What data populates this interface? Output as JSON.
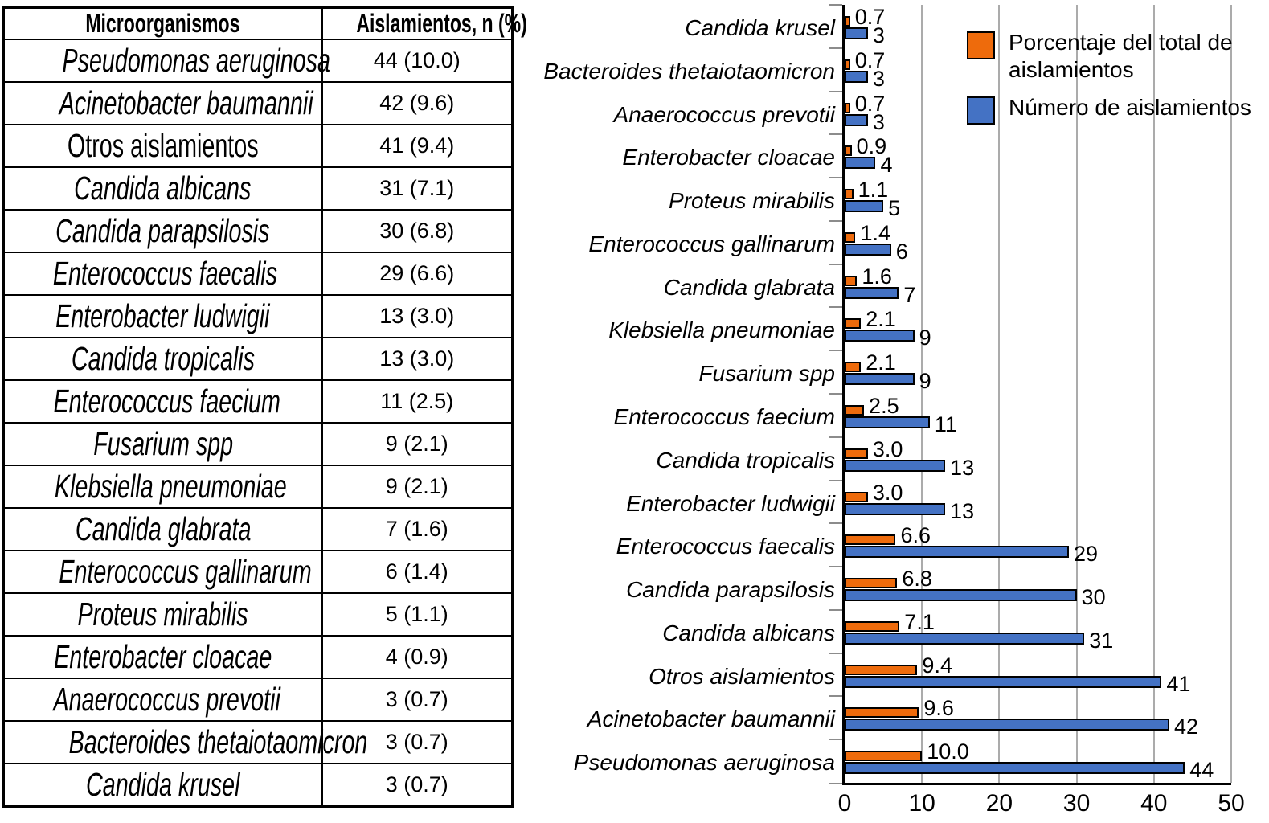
{
  "table": {
    "headers": [
      "Microorganismos",
      "Aislamientos, n (%)"
    ],
    "rows": [
      {
        "name": "Pseudomonas aeruginosa",
        "value": "44 (10.0)",
        "italic": true
      },
      {
        "name": "Acinetobacter baumannii",
        "value": "42 (9.6)",
        "italic": true
      },
      {
        "name": "Otros aislamientos",
        "value": "41 (9.4)",
        "italic": false
      },
      {
        "name": "Candida albicans",
        "value": "31 (7.1)",
        "italic": true
      },
      {
        "name": "Candida parapsilosis",
        "value": "30 (6.8)",
        "italic": true
      },
      {
        "name": "Enterococcus faecalis",
        "value": "29 (6.6)",
        "italic": true
      },
      {
        "name": "Enterobacter ludwigii",
        "value": "13 (3.0)",
        "italic": true
      },
      {
        "name": "Candida tropicalis",
        "value": "13 (3.0)",
        "italic": true
      },
      {
        "name": "Enterococcus faecium",
        "value": "11 (2.5)",
        "italic": true
      },
      {
        "name": "Fusarium spp",
        "value": "9 (2.1)",
        "italic": true
      },
      {
        "name": "Klebsiella pneumoniae",
        "value": "9 (2.1)",
        "italic": true
      },
      {
        "name": "Candida glabrata",
        "value": "7 (1.6)",
        "italic": true
      },
      {
        "name": "Enterococcus gallinarum",
        "value": "6 (1.4)",
        "italic": true
      },
      {
        "name": "Proteus mirabilis",
        "value": "5 (1.1)",
        "italic": true
      },
      {
        "name": "Enterobacter cloacae",
        "value": "4 (0.9)",
        "italic": true
      },
      {
        "name": "Anaerococcus prevotii",
        "value": "3 (0.7)",
        "italic": true
      },
      {
        "name": "Bacteroides thetaiotaomicron",
        "value": "3 (0.7)",
        "italic": true
      },
      {
        "name": "Candida krusel",
        "value": "3 (0.7)",
        "italic": true
      }
    ]
  },
  "chart_data": {
    "type": "bar",
    "orientation": "horizontal",
    "categories": [
      "Candida krusel",
      "Bacteroides thetaiotaomicron",
      "Anaerococcus prevotii",
      "Enterobacter cloacae",
      "Proteus mirabilis",
      "Enterococcus gallinarum",
      "Candida glabrata",
      "Klebsiella pneumoniae",
      "Fusarium spp",
      "Enterococcus faecium",
      "Candida tropicalis",
      "Enterobacter ludwigii",
      "Enterococcus faecalis",
      "Candida parapsilosis",
      "Candida albicans",
      "Otros aislamientos",
      "Acinetobacter baumannii",
      "Pseudomonas aeruginosa"
    ],
    "series": [
      {
        "name": "Porcentaje del total de aislamientos",
        "color": "#EE6B0C",
        "values": [
          0.7,
          0.7,
          0.7,
          0.9,
          1.1,
          1.4,
          1.6,
          2.1,
          2.1,
          2.5,
          3.0,
          3.0,
          6.6,
          6.8,
          7.1,
          9.4,
          9.6,
          10.0
        ],
        "labels": [
          "0.7",
          "0.7",
          "0.7",
          "0.9",
          "1.1",
          "1.4",
          "1.6",
          "2.1",
          "2.1",
          "2.5",
          "3.0",
          "3.0",
          "6.6",
          "6.8",
          "7.1",
          "9.4",
          "9.6",
          "10.0"
        ]
      },
      {
        "name": "Número de aislamientos",
        "color": "#4472C4",
        "values": [
          3,
          3,
          3,
          4,
          5,
          6,
          7,
          9,
          9,
          11,
          13,
          13,
          29,
          30,
          31,
          41,
          42,
          44
        ],
        "labels": [
          "3",
          "3",
          "3",
          "4",
          "5",
          "6",
          "7",
          "9",
          "9",
          "11",
          "13",
          "13",
          "29",
          "30",
          "31",
          "41",
          "42",
          "44"
        ]
      }
    ],
    "xlim": [
      0,
      50
    ],
    "xticks": [
      0,
      10,
      20,
      30,
      40,
      50
    ],
    "grid": "vertical",
    "legend_position": "top-right",
    "colors": {
      "grid": "#ABABAB",
      "axis": "#000000",
      "bar_border": "#000000",
      "tick": "#8C8C8C"
    }
  }
}
